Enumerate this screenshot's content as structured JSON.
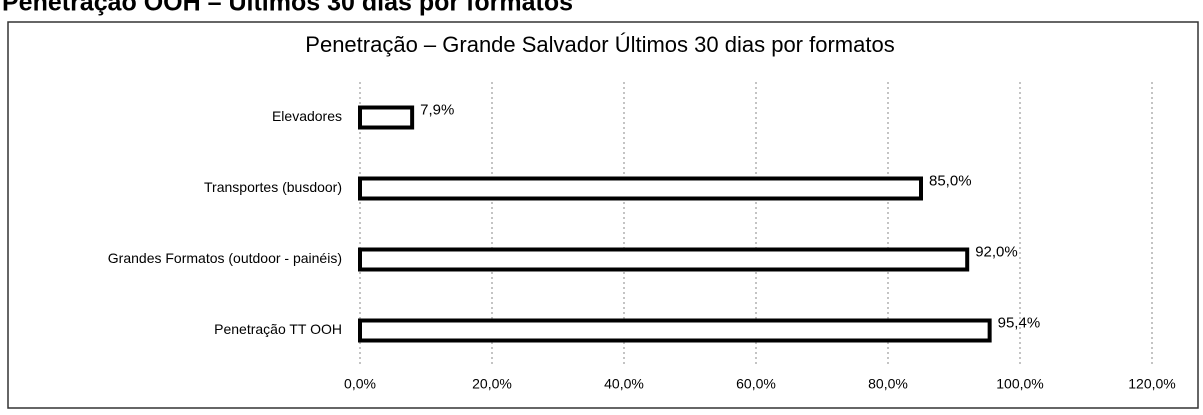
{
  "heading": "Penetração OOH – Últimos 30 dias por formatos",
  "chart_data": {
    "type": "bar",
    "orientation": "horizontal",
    "title": "Penetração – Grande Salvador Últimos 30 dias por formatos",
    "categories": [
      "Elevadores",
      "Transportes (busdoor)",
      "Grandes Formatos (outdoor - painéis)",
      "Penetração TT OOH"
    ],
    "values": [
      7.9,
      85.0,
      92.0,
      95.4
    ],
    "value_labels": [
      "7,9%",
      "85,0%",
      "92,0%",
      "95,4%"
    ],
    "color": "#ffffff",
    "xlim": [
      0,
      120
    ],
    "xticks": [
      {
        "value": 0,
        "label": "0,0%"
      },
      {
        "value": 20,
        "label": "20,0%"
      },
      {
        "value": 40,
        "label": "40,0%"
      },
      {
        "value": 60,
        "label": "60,0%"
      },
      {
        "value": 80,
        "label": "80,0%"
      },
      {
        "value": 100,
        "label": "100,0%"
      },
      {
        "value": 120,
        "label": "120,0%"
      }
    ],
    "grid": true
  }
}
